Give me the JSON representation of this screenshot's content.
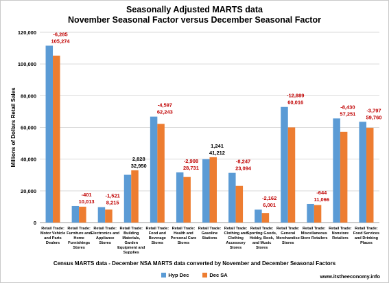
{
  "chart_data": {
    "type": "bar",
    "title": "Seasonally Adjusted MARTS data",
    "subtitle": "November Seasonal Factor versus December Seasonal Factor",
    "xlabel": "Census MARTS data - December NSA MARTS data converted by November and December Seasonal Factors",
    "ylabel": "Millions of Dollars Retail Sales",
    "ylim": [
      0,
      120000
    ],
    "yticks": [
      "0",
      "20,000",
      "40,000",
      "60,000",
      "80,000",
      "100,000",
      "120,000"
    ],
    "grid": true,
    "legend_position": "bottom",
    "categories": [
      [
        "Retail Trade:",
        "Motor Vehicle",
        "and Parts",
        "Dealers"
      ],
      [
        "Retail Trade:",
        "Furniture and",
        "Home",
        "Furnishings",
        "Stores"
      ],
      [
        "Retail Trade:",
        "Electronics and",
        "Appliance",
        "Stores"
      ],
      [
        "Retail Trade:",
        "Building",
        "Materials,",
        "Garden",
        "Equipment and",
        "Supplies"
      ],
      [
        "Retail Trade:",
        "Food and",
        "Beverage",
        "Stores"
      ],
      [
        "Retail Trade:",
        "Health and",
        "Personal Care",
        "Stores"
      ],
      [
        "Retail Trade:",
        "Gasoline",
        "Stations"
      ],
      [
        "Retail Trade:",
        "Clothing and",
        "Clothing",
        "Accessory",
        "Stores"
      ],
      [
        "Retail Trade:",
        "Sporting Goods,",
        "Hobby, Book,",
        "and Music",
        "Stores"
      ],
      [
        "Retail Trade:",
        "General",
        "Merchandise",
        "Stores"
      ],
      [
        "Retail Trade:",
        "Miscellaneous",
        "Store Retailers"
      ],
      [
        "Retail Trade:",
        "Nonstore",
        "Retailers"
      ],
      [
        "Retail Trade:",
        "Food Services",
        "and Drinking",
        "Places"
      ]
    ],
    "series": [
      {
        "name": "Hyp Dec",
        "color": "#5b9bd5",
        "values": [
          111559,
          10414,
          9736,
          30122,
          66840,
          31639,
          39971,
          31341,
          8163,
          72905,
          11710,
          65681,
          63557
        ]
      },
      {
        "name": "Dec SA",
        "color": "#ed7d31",
        "values": [
          105274,
          10013,
          8215,
          32950,
          62243,
          28731,
          41212,
          23094,
          6001,
          60016,
          11066,
          57251,
          59760
        ]
      }
    ],
    "data_labels": [
      {
        "diff": "-6,285",
        "value": "105,274",
        "diff_color": "#c00000",
        "value_color": "#c00000"
      },
      {
        "diff": "-401",
        "value": "10,013",
        "diff_color": "#c00000",
        "value_color": "#c00000"
      },
      {
        "diff": "-1,521",
        "value": "8,215",
        "diff_color": "#c00000",
        "value_color": "#c00000"
      },
      {
        "diff": "2,828",
        "value": "32,950",
        "diff_color": "#000000",
        "value_color": "#000000"
      },
      {
        "diff": "-4,597",
        "value": "62,243",
        "diff_color": "#c00000",
        "value_color": "#c00000"
      },
      {
        "diff": "-2,908",
        "value": "28,731",
        "diff_color": "#c00000",
        "value_color": "#c00000"
      },
      {
        "diff": "1,241",
        "value": "41,212",
        "diff_color": "#000000",
        "value_color": "#000000"
      },
      {
        "diff": "-8,247",
        "value": "23,094",
        "diff_color": "#c00000",
        "value_color": "#c00000"
      },
      {
        "diff": "-2,162",
        "value": "6,001",
        "diff_color": "#c00000",
        "value_color": "#c00000"
      },
      {
        "diff": "-12,889",
        "value": "60,016",
        "diff_color": "#c00000",
        "value_color": "#c00000"
      },
      {
        "diff": "-644",
        "value": "11,066",
        "diff_color": "#c00000",
        "value_color": "#c00000"
      },
      {
        "diff": "-8,430",
        "value": "57,251",
        "diff_color": "#c00000",
        "value_color": "#c00000"
      },
      {
        "diff": "-3,797",
        "value": "59,760",
        "diff_color": "#c00000",
        "value_color": "#c00000"
      }
    ]
  },
  "source": "www.itstheeconomy.info"
}
